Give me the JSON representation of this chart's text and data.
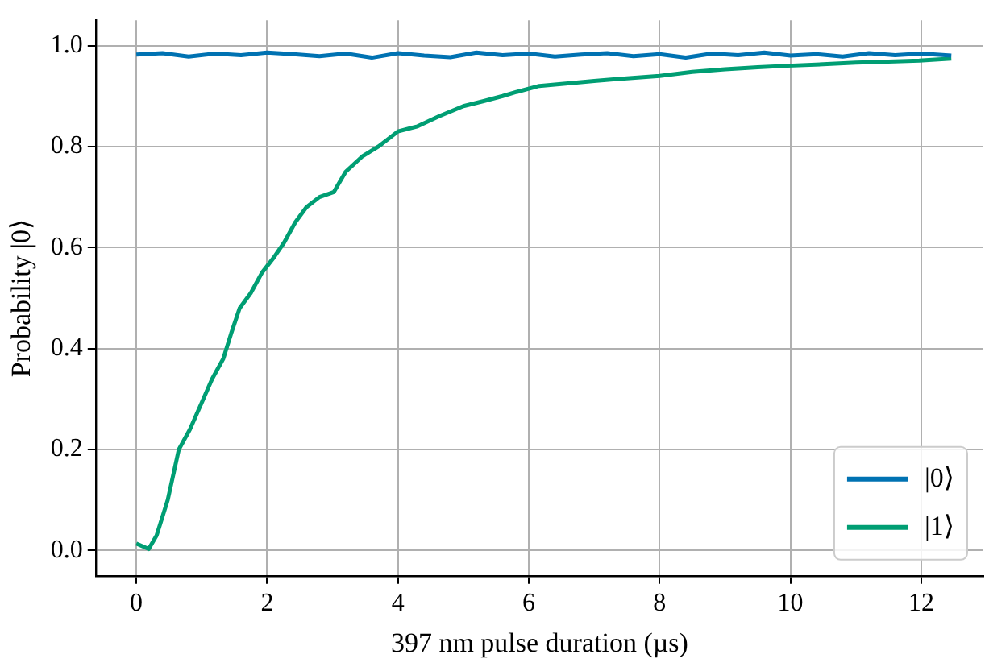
{
  "chart_data": {
    "type": "line",
    "xlabel": "397 nm pulse duration (µs)",
    "ylabel": "Probability |0⟩",
    "xlim": [
      -0.62,
      12.95
    ],
    "ylim": [
      -0.05,
      1.05
    ],
    "xticks": [
      0,
      2,
      4,
      6,
      8,
      10,
      12
    ],
    "yticks": [
      {
        "value": 0,
        "label": "0.0"
      },
      0.2,
      0.4,
      0.6,
      0.8,
      {
        "value": 1,
        "label": "1.0"
      }
    ],
    "grid": true,
    "legend": "bottom right",
    "marker": "none",
    "line_style": "solid",
    "series": [
      {
        "name": "|0⟩",
        "color": "#0072b2",
        "x": [
          0,
          0.4,
          0.8,
          1.2,
          1.6,
          2.0,
          2.4,
          2.8,
          3.2,
          3.6,
          4.0,
          4.4,
          4.8,
          5.2,
          5.6,
          6.0,
          6.4,
          6.8,
          7.2,
          7.6,
          8.0,
          8.4,
          8.8,
          9.2,
          9.6,
          10.0,
          10.4,
          10.8,
          11.2,
          11.6,
          12.0,
          12.46
        ],
        "values": [
          0.982,
          0.985,
          0.978,
          0.984,
          0.981,
          0.986,
          0.983,
          0.979,
          0.984,
          0.976,
          0.985,
          0.98,
          0.977,
          0.986,
          0.981,
          0.984,
          0.978,
          0.982,
          0.985,
          0.979,
          0.983,
          0.976,
          0.984,
          0.981,
          0.986,
          0.98,
          0.983,
          0.978,
          0.985,
          0.981,
          0.984,
          0.98
        ]
      },
      {
        "name": "|1⟩",
        "color": "#009e73",
        "x": [
          0,
          0.19,
          0.31,
          0.48,
          0.65,
          0.82,
          0.99,
          1.16,
          1.33,
          1.45,
          1.58,
          1.75,
          1.92,
          2.1,
          2.26,
          2.43,
          2.6,
          2.8,
          3.02,
          3.2,
          3.45,
          3.7,
          4.0,
          4.3,
          4.63,
          5.0,
          5.31,
          5.6,
          5.81,
          6.16,
          6.6,
          7.0,
          7.5,
          8.0,
          8.5,
          9.0,
          9.5,
          9.96,
          10.5,
          11.0,
          11.5,
          11.97,
          12.46
        ],
        "values": [
          0.014,
          0.003,
          0.03,
          0.1,
          0.2,
          0.24,
          0.29,
          0.34,
          0.38,
          0.43,
          0.48,
          0.51,
          0.55,
          0.58,
          0.61,
          0.65,
          0.68,
          0.7,
          0.71,
          0.75,
          0.78,
          0.8,
          0.83,
          0.84,
          0.86,
          0.88,
          0.89,
          0.9,
          0.908,
          0.92,
          0.925,
          0.93,
          0.935,
          0.94,
          0.948,
          0.953,
          0.957,
          0.96,
          0.963,
          0.966,
          0.968,
          0.97,
          0.974
        ]
      }
    ]
  }
}
